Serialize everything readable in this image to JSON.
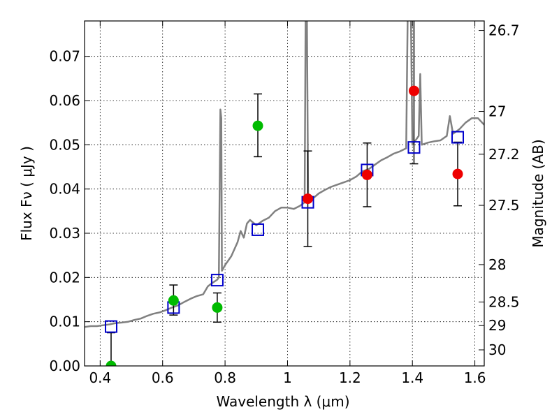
{
  "chart_data": {
    "type": "scatter",
    "xlabel": "Wavelength  λ (μm)",
    "ylabel": "Flux  Fν  ( μJy )",
    "y2label": "Magnitude (AB)",
    "xlim": [
      0.35,
      1.63
    ],
    "ylim": [
      0.0,
      0.078
    ],
    "x_ticks": [
      {
        "value": 0.4,
        "label": "0.4"
      },
      {
        "value": 0.6,
        "label": "0.6"
      },
      {
        "value": 0.8,
        "label": "0.8"
      },
      {
        "value": 1.0,
        "label": "1"
      },
      {
        "value": 1.2,
        "label": "1.2"
      },
      {
        "value": 1.4,
        "label": "1.4"
      },
      {
        "value": 1.6,
        "label": "1.6"
      }
    ],
    "y_ticks": [
      {
        "value": 0.0,
        "label": "0.00"
      },
      {
        "value": 0.01,
        "label": "0.01"
      },
      {
        "value": 0.02,
        "label": "0.02"
      },
      {
        "value": 0.03,
        "label": "0.03"
      },
      {
        "value": 0.04,
        "label": "0.04"
      },
      {
        "value": 0.05,
        "label": "0.05"
      },
      {
        "value": 0.06,
        "label": "0.06"
      },
      {
        "value": 0.07,
        "label": "0.07"
      }
    ],
    "y2_ticks": [
      {
        "value": 26.7,
        "label": "26.7"
      },
      {
        "value": 27.0,
        "label": "27"
      },
      {
        "value": 27.2,
        "label": "27.2"
      },
      {
        "value": 27.5,
        "label": "27.5"
      },
      {
        "value": 28.0,
        "label": "28"
      },
      {
        "value": 28.5,
        "label": "28.5"
      },
      {
        "value": 29.0,
        "label": "29"
      },
      {
        "value": 30.0,
        "label": "30"
      }
    ],
    "grid": true,
    "colors": {
      "model": "#808080",
      "green": "#00bb00",
      "red": "#ee0000",
      "model_points": "#0000cc",
      "errorbar": "#000000"
    },
    "model_spectrum": [
      [
        0.35,
        0.0088
      ],
      [
        0.37,
        0.009
      ],
      [
        0.39,
        0.009
      ],
      [
        0.41,
        0.0092
      ],
      [
        0.43,
        0.0094
      ],
      [
        0.45,
        0.0097
      ],
      [
        0.47,
        0.0098
      ],
      [
        0.49,
        0.01
      ],
      [
        0.51,
        0.0104
      ],
      [
        0.53,
        0.0107
      ],
      [
        0.55,
        0.0113
      ],
      [
        0.57,
        0.0118
      ],
      [
        0.59,
        0.0121
      ],
      [
        0.61,
        0.0126
      ],
      [
        0.63,
        0.0132
      ],
      [
        0.65,
        0.0137
      ],
      [
        0.67,
        0.0145
      ],
      [
        0.69,
        0.0152
      ],
      [
        0.71,
        0.0158
      ],
      [
        0.73,
        0.0162
      ],
      [
        0.745,
        0.018
      ],
      [
        0.76,
        0.0188
      ],
      [
        0.775,
        0.0195
      ],
      [
        0.78,
        0.02
      ],
      [
        0.785,
        0.058
      ],
      [
        0.788,
        0.056
      ],
      [
        0.79,
        0.0215
      ],
      [
        0.8,
        0.0228
      ],
      [
        0.82,
        0.0248
      ],
      [
        0.84,
        0.028
      ],
      [
        0.85,
        0.0305
      ],
      [
        0.86,
        0.029
      ],
      [
        0.87,
        0.0322
      ],
      [
        0.88,
        0.033
      ],
      [
        0.9,
        0.0318
      ],
      [
        0.92,
        0.0328
      ],
      [
        0.94,
        0.0335
      ],
      [
        0.96,
        0.035
      ],
      [
        0.98,
        0.0358
      ],
      [
        1.0,
        0.0358
      ],
      [
        1.02,
        0.0355
      ],
      [
        1.04,
        0.0362
      ],
      [
        1.055,
        0.037
      ],
      [
        1.058,
        0.08
      ],
      [
        1.062,
        0.08
      ],
      [
        1.066,
        0.037
      ],
      [
        1.08,
        0.0378
      ],
      [
        1.1,
        0.039
      ],
      [
        1.12,
        0.0398
      ],
      [
        1.14,
        0.0405
      ],
      [
        1.16,
        0.041
      ],
      [
        1.18,
        0.0415
      ],
      [
        1.2,
        0.042
      ],
      [
        1.22,
        0.0428
      ],
      [
        1.24,
        0.044
      ],
      [
        1.26,
        0.0445
      ],
      [
        1.28,
        0.0455
      ],
      [
        1.3,
        0.0465
      ],
      [
        1.32,
        0.0472
      ],
      [
        1.34,
        0.048
      ],
      [
        1.36,
        0.0485
      ],
      [
        1.38,
        0.0492
      ],
      [
        1.385,
        0.08
      ],
      [
        1.395,
        0.08
      ],
      [
        1.4,
        0.05
      ],
      [
        1.42,
        0.052
      ],
      [
        1.425,
        0.066
      ],
      [
        1.43,
        0.05
      ],
      [
        1.45,
        0.0505
      ],
      [
        1.47,
        0.0508
      ],
      [
        1.49,
        0.051
      ],
      [
        1.51,
        0.052
      ],
      [
        1.52,
        0.0565
      ],
      [
        1.53,
        0.0525
      ],
      [
        1.55,
        0.0535
      ],
      [
        1.57,
        0.055
      ],
      [
        1.59,
        0.056
      ],
      [
        1.61,
        0.056
      ],
      [
        1.63,
        0.0545
      ]
    ],
    "model_points": [
      {
        "x": 0.435,
        "y": 0.0089
      },
      {
        "x": 0.635,
        "y": 0.0132
      },
      {
        "x": 0.775,
        "y": 0.0194
      },
      {
        "x": 0.905,
        "y": 0.0308
      },
      {
        "x": 1.065,
        "y": 0.037
      },
      {
        "x": 1.255,
        "y": 0.0443
      },
      {
        "x": 1.405,
        "y": 0.0494
      },
      {
        "x": 1.545,
        "y": 0.0517
      }
    ],
    "green_points": [
      {
        "x": 0.435,
        "y": 0.0,
        "err_lo": 0.0,
        "err_hi": 0.0075
      },
      {
        "x": 0.635,
        "y": 0.0148,
        "err_lo": 0.0033,
        "err_hi": 0.0035
      },
      {
        "x": 0.775,
        "y": 0.0132,
        "err_lo": 0.0033,
        "err_hi": 0.0033
      },
      {
        "x": 0.905,
        "y": 0.0543,
        "err_lo": 0.007,
        "err_hi": 0.0072
      }
    ],
    "red_points": [
      {
        "x": 1.065,
        "y": 0.0378,
        "err_lo": 0.0108,
        "err_hi": 0.0108
      },
      {
        "x": 1.255,
        "y": 0.0432,
        "err_lo": 0.0072,
        "err_hi": 0.0072
      },
      {
        "x": 1.405,
        "y": 0.0622,
        "err_lo": 0.0165,
        "err_hi": 0.0165
      },
      {
        "x": 1.545,
        "y": 0.0434,
        "err_lo": 0.0072,
        "err_hi": 0.0072
      }
    ]
  }
}
